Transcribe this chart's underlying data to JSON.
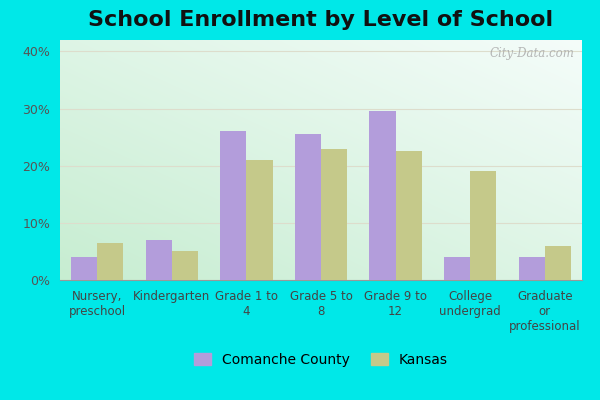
{
  "title": "School Enrollment by Level of School",
  "categories": [
    "Nursery,\npreschool",
    "Kindergarten",
    "Grade 1 to\n4",
    "Grade 5 to\n8",
    "Grade 9 to\n12",
    "College\nundergrad",
    "Graduate\nor\nprofessional"
  ],
  "comanche_values": [
    4.0,
    7.0,
    26.0,
    25.5,
    29.5,
    4.0,
    4.0
  ],
  "kansas_values": [
    6.5,
    5.0,
    21.0,
    23.0,
    22.5,
    19.0,
    6.0
  ],
  "comanche_color": "#b39ddb",
  "kansas_color": "#c5c98a",
  "outer_bg_color": "#00e8e8",
  "ylim": [
    0,
    42
  ],
  "yticks": [
    0,
    10,
    20,
    30,
    40
  ],
  "ytick_labels": [
    "0%",
    "10%",
    "20%",
    "30%",
    "40%"
  ],
  "legend_comanche": "Comanche County",
  "legend_kansas": "Kansas",
  "bar_width": 0.35,
  "title_fontsize": 16,
  "watermark_text": "City-Data.com",
  "grid_color": "#ddddcc",
  "grid_linewidth": 0.8
}
